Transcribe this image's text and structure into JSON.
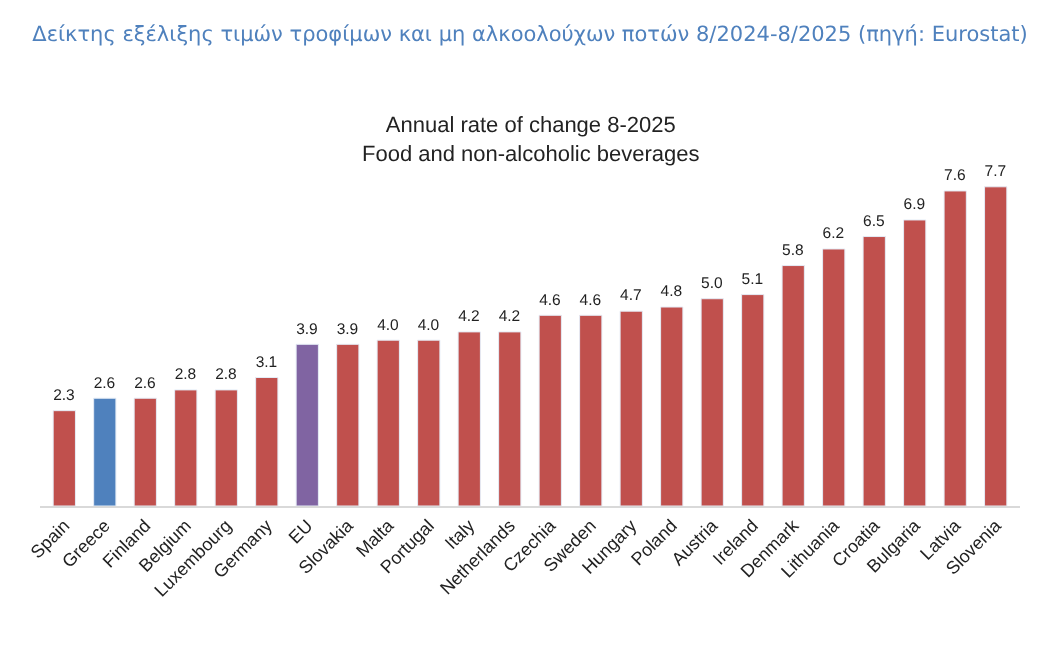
{
  "chart_data": {
    "type": "bar",
    "title": "Δείκτης εξέλιξης τιμών τροφίμων και μη αλκοολούχων ποτών 8/2024-8/2025 (πηγή: Eurostat)",
    "subtitle": "Annual rate of change 8-2025\nFood and non-alcoholic beverages",
    "categories": [
      "Spain",
      "Greece",
      "Finland",
      "Belgium",
      "Luxembourg",
      "Germany",
      "EU",
      "Slovakia",
      "Malta",
      "Portugal",
      "Italy",
      "Netherlands",
      "Czechia",
      "Sweden",
      "Hungary",
      "Poland",
      "Austria",
      "Ireland",
      "Denmark",
      "Lithuania",
      "Croatia",
      "Bulgaria",
      "Latvia",
      "Slovenia"
    ],
    "values": [
      2.3,
      2.6,
      2.6,
      2.8,
      2.8,
      3.1,
      3.9,
      3.9,
      4.0,
      4.0,
      4.2,
      4.2,
      4.6,
      4.6,
      4.7,
      4.8,
      5.0,
      5.1,
      5.8,
      6.2,
      6.5,
      6.9,
      7.6,
      7.7
    ],
    "value_labels": [
      "2.3",
      "2.6",
      "2.6",
      "2.8",
      "2.8",
      "3.1",
      "3.9",
      "3.9",
      "4.0",
      "4.0",
      "4.2",
      "4.2",
      "4.6",
      "4.6",
      "4.7",
      "4.8",
      "5.0",
      "5.1",
      "5.8",
      "6.2",
      "6.5",
      "6.9",
      "7.6",
      "7.7"
    ],
    "colors": [
      "#c0504d",
      "#4f81bd",
      "#c0504d",
      "#c0504d",
      "#c0504d",
      "#c0504d",
      "#8064a2",
      "#c0504d",
      "#c0504d",
      "#c0504d",
      "#c0504d",
      "#c0504d",
      "#c0504d",
      "#c0504d",
      "#c0504d",
      "#c0504d",
      "#c0504d",
      "#c0504d",
      "#c0504d",
      "#c0504d",
      "#c0504d",
      "#c0504d",
      "#c0504d",
      "#c0504d"
    ]
  }
}
